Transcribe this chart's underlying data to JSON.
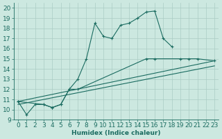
{
  "xlabel": "Humidex (Indice chaleur)",
  "bg_color": "#cce8e0",
  "line_color": "#1a6b60",
  "grid_color": "#aaccc4",
  "xlim": [
    -0.5,
    23.5
  ],
  "ylim": [
    9,
    20.5
  ],
  "yticks": [
    9,
    10,
    11,
    12,
    13,
    14,
    15,
    16,
    17,
    18,
    19,
    20
  ],
  "xticks": [
    0,
    1,
    2,
    3,
    4,
    5,
    6,
    7,
    8,
    9,
    10,
    11,
    12,
    13,
    14,
    15,
    16,
    17,
    18,
    19,
    20,
    21,
    22,
    23
  ],
  "line1_x": [
    0,
    1,
    2,
    3,
    4,
    5,
    6,
    7,
    8,
    9,
    10,
    11,
    12,
    13,
    14,
    15,
    16,
    17,
    18
  ],
  "line1_y": [
    10.8,
    9.5,
    10.5,
    10.5,
    10.2,
    10.5,
    12.0,
    13.0,
    15.0,
    18.5,
    17.2,
    17.0,
    18.3,
    18.5,
    19.0,
    19.6,
    19.7,
    17.0,
    16.2
  ],
  "line2_x": [
    0,
    3,
    4,
    5,
    6,
    7,
    15,
    16,
    19,
    20,
    21,
    23
  ],
  "line2_y": [
    10.8,
    10.5,
    10.2,
    10.5,
    12.0,
    12.0,
    15.0,
    15.0,
    15.0,
    15.0,
    15.0,
    14.8
  ],
  "line3_x": [
    0,
    23
  ],
  "line3_y": [
    10.5,
    14.3
  ],
  "line4_x": [
    0,
    23
  ],
  "line4_y": [
    10.8,
    14.8
  ],
  "font_size": 6.5
}
